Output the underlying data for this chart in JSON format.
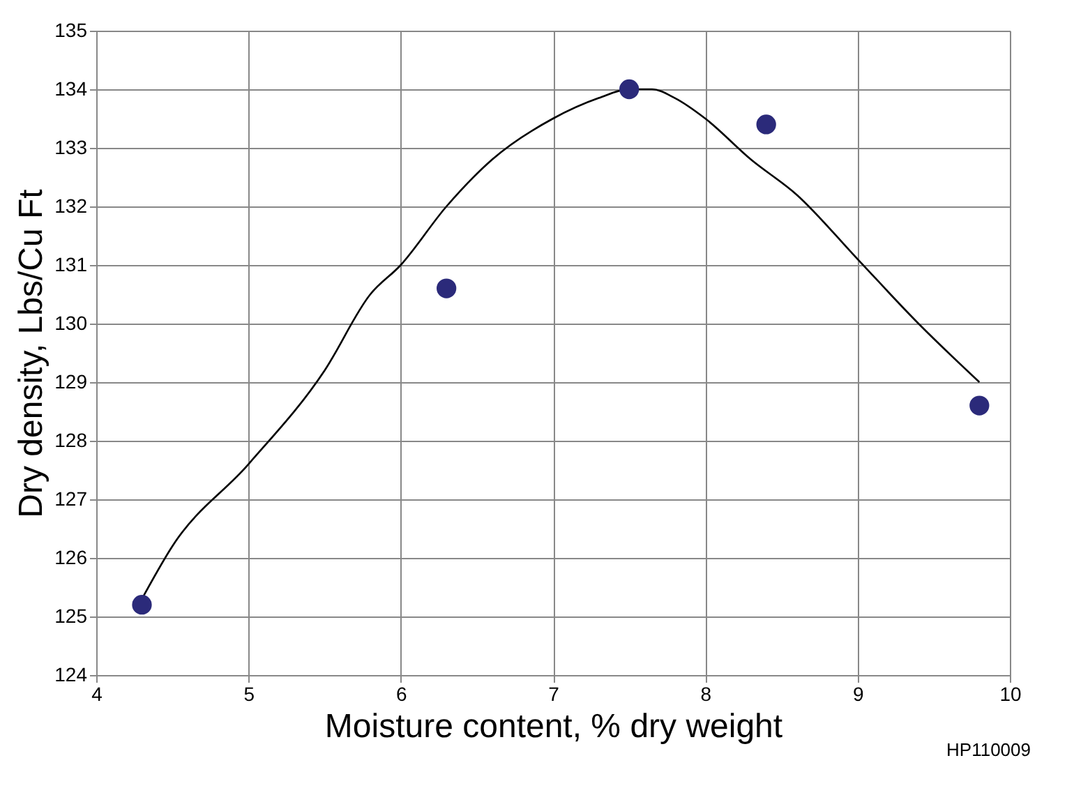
{
  "chart_data": {
    "type": "scatter",
    "xlabel": "Moisture content, % dry weight",
    "ylabel": "Dry density, Lbs/Cu Ft",
    "xlim": [
      4,
      10
    ],
    "xticks": [
      4,
      5,
      6,
      7,
      8,
      9,
      10
    ],
    "ylim": [
      124,
      135
    ],
    "yticks": [
      124,
      125,
      126,
      127,
      128,
      129,
      130,
      131,
      132,
      133,
      134,
      135
    ],
    "grid": true,
    "series": [
      {
        "type": "line",
        "color": "#000000",
        "marker": "none",
        "line_style": "solid",
        "x": [
          4.3,
          4.5,
          5,
          5.5,
          5.8,
          6,
          6.3,
          6.6,
          7,
          7.3,
          7.5,
          7.65,
          7.8,
          8,
          8.3,
          8.6,
          9,
          9.4,
          9.8
        ],
        "values": [
          125.3,
          126.2,
          127.6,
          129.2,
          130.5,
          131.0,
          132.0,
          132.8,
          133.5,
          133.85,
          134.0,
          134.0,
          133.85,
          133.5,
          132.8,
          132.2,
          131.1,
          130.0,
          129.0
        ]
      },
      {
        "color": "#2b2a7a",
        "marker": "circle",
        "x": [
          4.3,
          6.3,
          7.5,
          8.4,
          9.8
        ],
        "values": [
          125.2,
          130.6,
          134.0,
          133.4,
          128.6
        ]
      }
    ],
    "annotations": [
      "HP110009"
    ]
  }
}
